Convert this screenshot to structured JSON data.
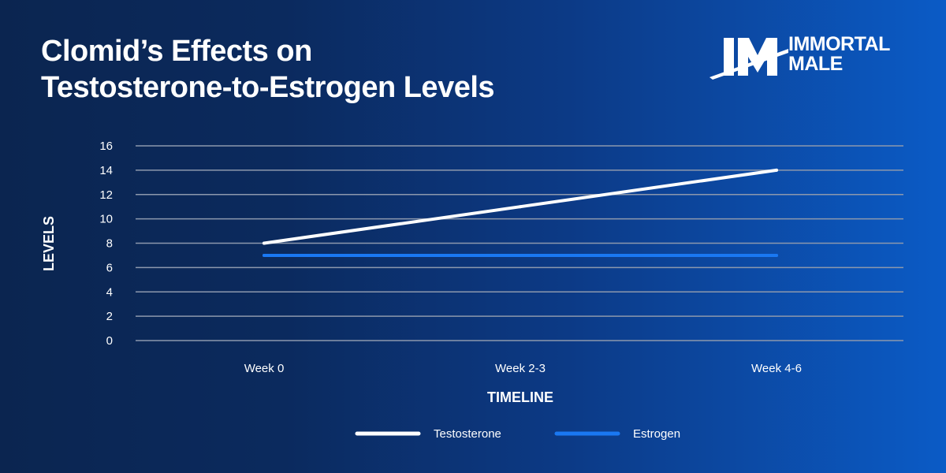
{
  "header": {
    "title_line1": "Clomid’s Effects on",
    "title_line2": "Testosterone-to-Estrogen Levels"
  },
  "brand": {
    "monogram": "IM",
    "line1": "IMMORTAL",
    "line2": "MALE",
    "logo_icon": "im-monogram-icon"
  },
  "colors": {
    "background_start": "#0b2550",
    "background_end": "#0b5bc6",
    "gridline": "#8c98ad",
    "testosterone": "#ffffff",
    "estrogen": "#1a78f2",
    "text": "#ffffff"
  },
  "chart_data": {
    "type": "line",
    "title": "Clomid’s Effects on Testosterone-to-Estrogen Levels",
    "xlabel": "TIMELINE",
    "ylabel": "LEVELS",
    "categories": [
      "Week 0",
      "Week 2-3",
      "Week 4-6"
    ],
    "ylim": [
      0,
      16
    ],
    "yticks": [
      0,
      2,
      4,
      6,
      8,
      10,
      12,
      14,
      16
    ],
    "grid": true,
    "legend": "bottom-center",
    "series": [
      {
        "name": "Testosterone",
        "values": [
          8,
          11,
          14
        ],
        "color": "#ffffff"
      },
      {
        "name": "Estrogen",
        "values": [
          7,
          7,
          7
        ],
        "color": "#1a78f2"
      }
    ]
  }
}
